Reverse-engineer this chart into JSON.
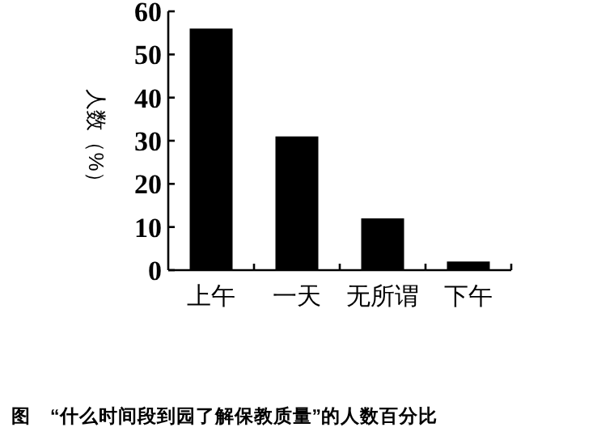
{
  "chart_data": {
    "type": "bar",
    "categories": [
      "上午",
      "一天",
      "无所谓",
      "下午"
    ],
    "values": [
      56,
      31,
      12,
      2
    ],
    "color": "#000000",
    "ylabel": "人数（%）",
    "ylim": [
      0,
      60
    ],
    "yticks": [
      0,
      10,
      20,
      30,
      40,
      50,
      60
    ],
    "grid": false,
    "annotations": [
      "图　“什么时间段到园了解保教质量”的人数百分比"
    ]
  }
}
